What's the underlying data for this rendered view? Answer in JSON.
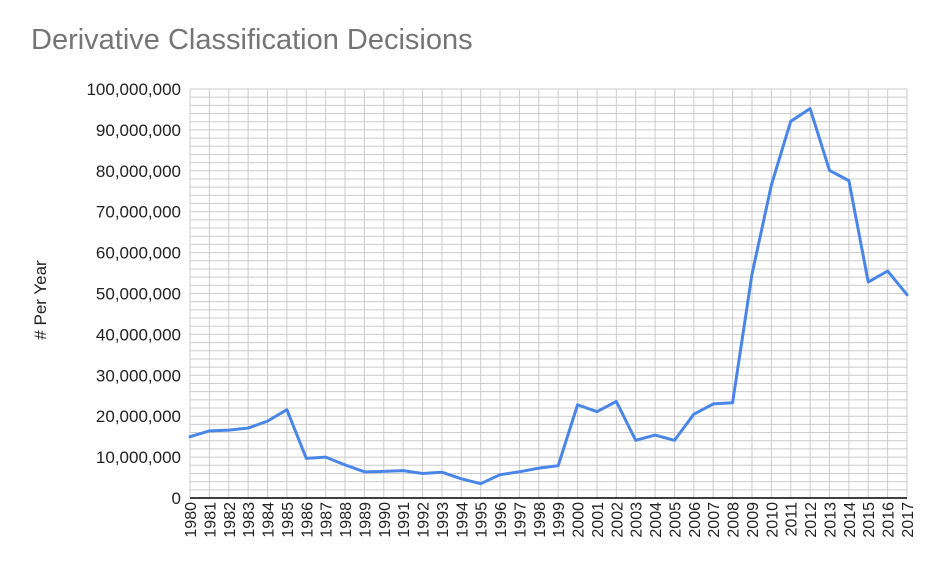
{
  "chart_data": {
    "type": "line",
    "title": "Derivative Classification Decisions",
    "xlabel": "",
    "ylabel": "# Per Year",
    "ylim": [
      0,
      100000000
    ],
    "yticks": [
      0,
      10000000,
      20000000,
      30000000,
      40000000,
      50000000,
      60000000,
      70000000,
      80000000,
      90000000,
      100000000
    ],
    "ytick_labels": [
      "0",
      "10,000,000",
      "20,000,000",
      "30,000,000",
      "40,000,000",
      "50,000,000",
      "60,000,000",
      "70,000,000",
      "80,000,000",
      "90,000,000",
      "100,000,000"
    ],
    "categories": [
      "1980",
      "1981",
      "1982",
      "1983",
      "1984",
      "1985",
      "1986",
      "1987",
      "1988",
      "1989",
      "1990",
      "1991",
      "1992",
      "1993",
      "1994",
      "1995",
      "1996",
      "1997",
      "1998",
      "1999",
      "2000",
      "2001",
      "2002",
      "2003",
      "2004",
      "2005",
      "2006",
      "2007",
      "2008",
      "2009",
      "2010",
      "2011",
      "2012",
      "2013",
      "2014",
      "2015",
      "2016",
      "2017"
    ],
    "series": [
      {
        "name": "# Per Year",
        "color": "#4a86e8",
        "values": [
          15000000,
          16400000,
          16600000,
          17100000,
          18800000,
          21600000,
          9700000,
          10000000,
          8100000,
          6400000,
          6500000,
          6700000,
          6000000,
          6300000,
          4700000,
          3500000,
          5700000,
          6400000,
          7300000,
          7900000,
          22800000,
          21100000,
          23600000,
          14100000,
          15400000,
          14100000,
          20500000,
          23000000,
          23300000,
          54700000,
          76500000,
          92100000,
          95200000,
          80100000,
          77600000,
          52800000,
          55500000,
          49700000
        ]
      }
    ],
    "grid": true,
    "grid_color": "#cccccc",
    "axis_color": "#000000"
  }
}
